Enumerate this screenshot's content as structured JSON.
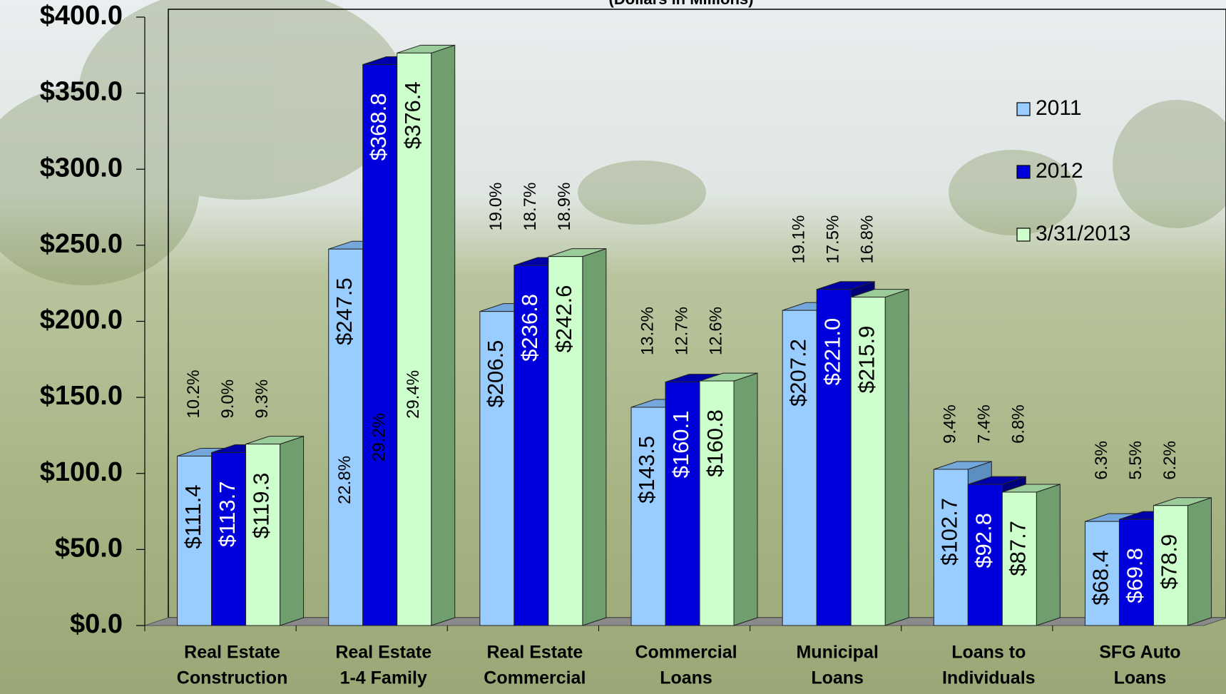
{
  "chart_data": {
    "type": "bar3d",
    "subtitle": "(Dollars in Millions)",
    "categories": [
      [
        "Real Estate",
        "Construction"
      ],
      [
        "Real Estate",
        "1-4 Family"
      ],
      [
        "Real Estate",
        "Commercial"
      ],
      [
        "Commercial",
        "Loans"
      ],
      [
        "Municipal",
        "Loans"
      ],
      [
        "Loans to",
        "Individuals"
      ],
      [
        "SFG Auto",
        "Loans"
      ]
    ],
    "series": [
      {
        "name": "2011",
        "color": "#99ccff",
        "side": "#5c8fc0",
        "top": "#74a8dc",
        "label_color": "#000000",
        "values": [
          111.4,
          247.5,
          206.5,
          143.5,
          207.2,
          102.7,
          68.4
        ],
        "value_labels": [
          "$111.4",
          "$247.5",
          "$206.5",
          "$143.5",
          "$207.2",
          "$102.7",
          "$68.4"
        ],
        "shares": [
          10.2,
          22.8,
          19.0,
          13.2,
          19.1,
          9.4,
          6.3
        ],
        "share_labels": [
          "10.2%",
          "22.8%",
          "19.0%",
          "13.2%",
          "19.1%",
          "9.4%",
          "6.3%"
        ]
      },
      {
        "name": "2012",
        "color": "#0000dd",
        "side": "#00007a",
        "top": "#0000aa",
        "label_color": "#ffffff",
        "values": [
          113.7,
          368.8,
          236.8,
          160.1,
          221.0,
          92.8,
          69.8
        ],
        "value_labels": [
          "$113.7",
          "$368.8",
          "$236.8",
          "$160.1",
          "$221.0",
          "$92.8",
          "$69.8"
        ],
        "shares": [
          9.0,
          29.2,
          18.7,
          12.7,
          17.5,
          7.4,
          5.5
        ],
        "share_labels": [
          "9.0%",
          "29.2%",
          "18.7%",
          "12.7%",
          "17.5%",
          "7.4%",
          "5.5%"
        ]
      },
      {
        "name": "3/31/2013",
        "color": "#ccffcc",
        "side": "#6f9f6f",
        "top": "#99cc99",
        "label_color": "#000000",
        "values": [
          119.3,
          376.4,
          242.6,
          160.8,
          215.9,
          87.7,
          78.9
        ],
        "value_labels": [
          "$119.3",
          "$376.4",
          "$242.6",
          "$160.8",
          "$215.9",
          "$87.7",
          "$78.9"
        ],
        "shares": [
          9.3,
          29.4,
          18.9,
          12.6,
          16.8,
          6.8,
          6.2
        ],
        "share_labels": [
          "9.3%",
          "29.4%",
          "18.9%",
          "12.6%",
          "16.8%",
          "6.8%",
          "6.2%"
        ]
      }
    ],
    "ylim": [
      0,
      400
    ],
    "yticks": [
      {
        "value": 0,
        "label": "$0.0"
      },
      {
        "value": 50,
        "label": "$50.0"
      },
      {
        "value": 100,
        "label": "$100.0"
      },
      {
        "value": 150,
        "label": "$150.0"
      },
      {
        "value": 200,
        "label": "$200.0"
      },
      {
        "value": 250,
        "label": "$250.0"
      },
      {
        "value": 300,
        "label": "$300.0"
      },
      {
        "value": 350,
        "label": "$350.0"
      },
      {
        "value": 400,
        "label": "$400.0"
      }
    ],
    "legend": "right"
  }
}
